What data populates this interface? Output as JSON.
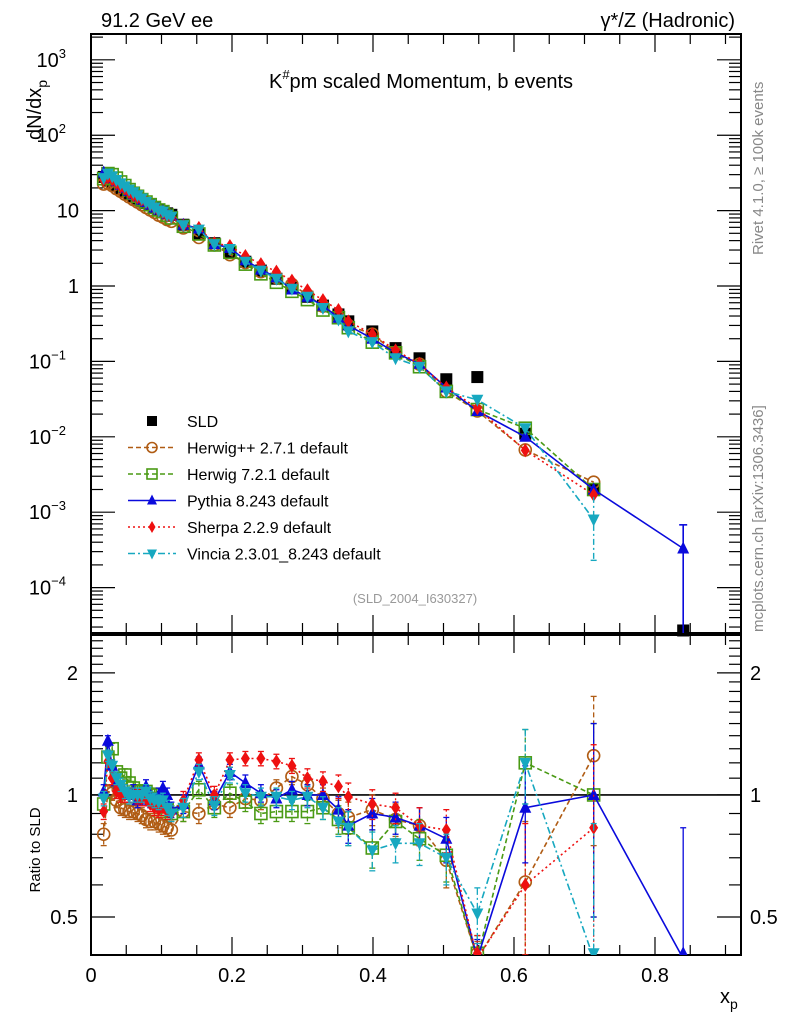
{
  "chart_data": [
    {
      "type": "scatter",
      "panel": "main",
      "title": "K#pm scaled Momentum, b events",
      "title_main": "K",
      "title_sup": "#",
      "title_rest": "pm scaled Momentum, b events",
      "header_left": "91.2 GeV ee",
      "header_right": "γ*/Z (Hadronic)",
      "side_label_top": "Rivet 4.1.0, ≥ 100k events",
      "side_label_bottom": "mcplots.cern.ch [arXiv:1306.3436]",
      "watermark": "(SLD_2004_I630327)",
      "ylabel": "dN/dx",
      "ylabel_sub": "p",
      "yscale": "log",
      "ylim": [
        2.5e-05,
        2200
      ],
      "xlim": [
        0,
        0.922
      ],
      "yticks": [
        {
          "value": 1000,
          "base": "10",
          "exp": "3"
        },
        {
          "value": 100,
          "base": "10",
          "exp": "2"
        },
        {
          "value": 10,
          "base": "10",
          "exp": ""
        },
        {
          "value": 1,
          "base": "1",
          "exp": ""
        },
        {
          "value": 0.1,
          "base": "10",
          "exp": "−1"
        },
        {
          "value": 0.01,
          "base": "10",
          "exp": "−2"
        },
        {
          "value": 0.001,
          "base": "10",
          "exp": "−3"
        },
        {
          "value": 0.0001,
          "base": "10",
          "exp": "−4"
        }
      ],
      "legend_position": "lower-left",
      "x": [
        0.018,
        0.024,
        0.03,
        0.036,
        0.042,
        0.048,
        0.054,
        0.06,
        0.066,
        0.072,
        0.078,
        0.084,
        0.09,
        0.096,
        0.102,
        0.108,
        0.114,
        0.131,
        0.153,
        0.175,
        0.197,
        0.219,
        0.241,
        0.263,
        0.285,
        0.307,
        0.329,
        0.351,
        0.365,
        0.399,
        0.432,
        0.466,
        0.504,
        0.548,
        0.616,
        0.713,
        0.84
      ],
      "series": [
        {
          "name": "SLD",
          "color": "#000000",
          "marker": "square",
          "line": "none",
          "values": [
            28,
            25,
            23,
            21,
            19.5,
            18,
            16.8,
            15.5,
            14.5,
            13.5,
            12.6,
            11.8,
            11,
            10.3,
            9.8,
            9.2,
            8.8,
            6.5,
            4.9,
            3.7,
            2.8,
            2.1,
            1.6,
            1.25,
            0.95,
            0.72,
            0.55,
            0.42,
            0.34,
            0.25,
            0.15,
            0.11,
            0.058,
            0.062,
            0.011,
            0.002,
            2.7e-05
          ]
        },
        {
          "name": "Herwig++ 2.7.1 default",
          "color": "#b05c14",
          "marker": "open-circle",
          "line": "dashed",
          "values": [
            22.5,
            23,
            21.5,
            19.5,
            18,
            16.5,
            15.2,
            14,
            13,
            12,
            11,
            10.2,
            9.5,
            8.7,
            8.2,
            7.6,
            7.2,
            5.9,
            4.4,
            3.5,
            2.6,
            2.05,
            1.55,
            1.3,
            1.05,
            0.76,
            0.54,
            0.38,
            0.3,
            0.23,
            0.13,
            0.092,
            0.04,
            0.022,
            0.0067,
            0.0025,
            null
          ]
        },
        {
          "name": "Herwig 7.2.1 default",
          "color": "#4a9a14",
          "marker": "open-square",
          "line": "dashed",
          "values": [
            26.5,
            31,
            30,
            27,
            24,
            21.5,
            19,
            17,
            15.5,
            14,
            13,
            12,
            11,
            10.2,
            9.7,
            8.7,
            8.0,
            6.2,
            4.9,
            3.5,
            2.8,
            1.95,
            1.45,
            1.12,
            0.85,
            0.66,
            0.48,
            0.38,
            0.28,
            0.18,
            0.13,
            0.085,
            0.04,
            0.023,
            0.013,
            0.002,
            null
          ]
        },
        {
          "name": "Pythia 8.243 default",
          "color": "#0a0adc",
          "marker": "triangle-up",
          "line": "solid",
          "values": [
            32,
            29.5,
            27,
            24.5,
            22,
            20,
            18.2,
            16.5,
            15.5,
            14,
            13,
            12,
            11,
            10.3,
            9.8,
            9,
            8.5,
            6.5,
            5.8,
            3.6,
            3.2,
            2.2,
            1.65,
            1.3,
            0.9,
            0.72,
            0.55,
            0.38,
            0.3,
            0.2,
            0.13,
            0.093,
            0.045,
            0.022,
            0.01,
            0.002,
            0.00033
          ]
        },
        {
          "name": "Sherpa 2.2.9 default",
          "color": "#ee1010",
          "marker": "diamond",
          "line": "dotted",
          "values": [
            25.5,
            28,
            26,
            23.5,
            21,
            19.5,
            17.5,
            16,
            15,
            14,
            13,
            12,
            11,
            10,
            9.5,
            8.5,
            8.2,
            6.3,
            5.9,
            3.7,
            3.4,
            2.5,
            1.95,
            1.55,
            1.18,
            0.88,
            0.65,
            0.48,
            0.34,
            0.23,
            0.14,
            0.093,
            0.045,
            0.024,
            0.0066,
            0.0017,
            null
          ]
        },
        {
          "name": "Vincia 2.3.01_8.243 default",
          "color": "#17a8c0",
          "marker": "triangle-down",
          "line": "dashdot",
          "values": [
            27,
            31,
            28.5,
            25.5,
            23,
            21,
            19,
            17.5,
            16,
            14.5,
            13,
            12,
            11,
            10,
            9.7,
            8.7,
            8.3,
            6.4,
            5.6,
            3.6,
            3.1,
            2.1,
            1.6,
            1.25,
            0.92,
            0.72,
            0.51,
            0.36,
            0.25,
            0.18,
            0.11,
            0.085,
            0.04,
            0.031,
            0.013,
            0.0008,
            null
          ]
        }
      ]
    },
    {
      "type": "scatter",
      "panel": "ratio",
      "ylabel": "Ratio to SLD",
      "xlabel": "x",
      "xlabel_sub": "p",
      "yscale": "log",
      "ylim": [
        0.403,
        2.48
      ],
      "xlim": [
        0,
        0.922
      ],
      "yticks": [
        {
          "value": 0.5,
          "label": "0.5"
        },
        {
          "value": 1,
          "label": "1"
        },
        {
          "value": 2,
          "label": "2"
        }
      ],
      "xticks": [
        {
          "value": 0,
          "label": "0"
        },
        {
          "value": 0.2,
          "label": "0.2"
        },
        {
          "value": 0.4,
          "label": "0.4"
        },
        {
          "value": 0.6,
          "label": "0.6"
        },
        {
          "value": 0.8,
          "label": "0.8"
        }
      ],
      "reference_line": 1,
      "x": [
        0.018,
        0.024,
        0.03,
        0.036,
        0.042,
        0.048,
        0.054,
        0.06,
        0.066,
        0.072,
        0.078,
        0.084,
        0.09,
        0.096,
        0.102,
        0.108,
        0.114,
        0.131,
        0.153,
        0.175,
        0.197,
        0.219,
        0.241,
        0.263,
        0.285,
        0.307,
        0.329,
        0.351,
        0.365,
        0.399,
        0.432,
        0.466,
        0.504,
        0.548,
        0.616,
        0.713,
        0.84
      ],
      "series": [
        {
          "name": "Herwig++ 2.7.1 default",
          "color": "#b05c14",
          "marker": "open-circle",
          "line": "dashed",
          "values": [
            0.8,
            1.02,
            1.01,
            0.97,
            0.93,
            0.92,
            0.91,
            0.91,
            0.9,
            0.89,
            0.87,
            0.86,
            0.86,
            0.85,
            0.84,
            0.83,
            0.82,
            0.91,
            0.9,
            0.95,
            0.93,
            0.98,
            0.97,
            1.04,
            1.11,
            1.06,
            0.98,
            0.9,
            0.88,
            0.92,
            0.87,
            0.84,
            0.69,
            0.355,
            0.61,
            1.25,
            null
          ],
          "err": [
            0.05,
            0.04,
            0.04,
            0.04,
            0.04,
            0.04,
            0.04,
            0.04,
            0.04,
            0.04,
            0.04,
            0.04,
            0.04,
            0.04,
            0.04,
            0.04,
            0.04,
            0.05,
            0.05,
            0.05,
            0.05,
            0.05,
            0.05,
            0.05,
            0.05,
            0.06,
            0.06,
            0.07,
            0.08,
            0.08,
            0.08,
            0.09,
            0.1,
            0.08,
            0.25,
            0.5,
            null
          ]
        },
        {
          "name": "Herwig 7.2.1 default",
          "color": "#4a9a14",
          "marker": "open-square",
          "line": "dashed",
          "values": [
            0.95,
            1.24,
            1.3,
            1.14,
            1.1,
            1.12,
            1.07,
            1.04,
            1.02,
            1.02,
            1.02,
            1.0,
            1.0,
            0.98,
            0.96,
            0.92,
            0.9,
            0.91,
            1.03,
            0.93,
            1.01,
            0.96,
            0.9,
            0.91,
            0.91,
            0.91,
            0.93,
            0.87,
            0.83,
            0.74,
            0.86,
            0.78,
            0.71,
            0.37,
            1.2,
            1.0,
            null
          ],
          "err": [
            0.04,
            0.04,
            0.04,
            0.04,
            0.04,
            0.04,
            0.04,
            0.04,
            0.04,
            0.04,
            0.04,
            0.04,
            0.04,
            0.04,
            0.04,
            0.04,
            0.04,
            0.05,
            0.05,
            0.05,
            0.05,
            0.05,
            0.05,
            0.05,
            0.05,
            0.06,
            0.06,
            0.07,
            0.08,
            0.08,
            0.08,
            0.09,
            0.1,
            0.08,
            0.25,
            0.5,
            null
          ]
        },
        {
          "name": "Pythia 8.243 default",
          "color": "#0a0adc",
          "marker": "triangle-up",
          "line": "solid",
          "values": [
            1.02,
            1.36,
            1.18,
            1.08,
            1.04,
            1.02,
            1.0,
            1.02,
            0.97,
            0.99,
            1.05,
            0.97,
            0.97,
            1.0,
            1.04,
            1.0,
            0.92,
            0.95,
            1.19,
            0.97,
            1.14,
            1.07,
            1.01,
            0.98,
            1.03,
            1.0,
            1.0,
            0.92,
            0.84,
            0.9,
            0.88,
            0.84,
            0.78,
            0.36,
            0.93,
            1.0,
            0.33
          ],
          "err": [
            0.04,
            0.04,
            0.04,
            0.04,
            0.04,
            0.04,
            0.04,
            0.04,
            0.04,
            0.04,
            0.04,
            0.04,
            0.04,
            0.04,
            0.04,
            0.04,
            0.04,
            0.05,
            0.05,
            0.05,
            0.05,
            0.05,
            0.05,
            0.05,
            0.05,
            0.06,
            0.06,
            0.07,
            0.08,
            0.08,
            0.08,
            0.09,
            0.1,
            0.08,
            0.25,
            0.5,
            0.5
          ]
        },
        {
          "name": "Sherpa 2.2.9 default",
          "color": "#ee1010",
          "marker": "diamond",
          "line": "dotted",
          "values": [
            0.91,
            1.21,
            1.1,
            1.02,
            1.0,
            1.0,
            1.0,
            1.0,
            0.99,
            0.98,
            0.98,
            0.95,
            0.93,
            0.92,
            0.93,
            0.91,
            0.9,
            0.97,
            1.22,
            1.0,
            1.22,
            1.23,
            1.23,
            1.21,
            1.18,
            1.1,
            1.08,
            1.05,
            0.99,
            0.95,
            0.93,
            0.84,
            0.82,
            0.37,
            0.6,
            0.83,
            null
          ],
          "err": [
            0.04,
            0.04,
            0.04,
            0.04,
            0.04,
            0.04,
            0.04,
            0.04,
            0.04,
            0.04,
            0.04,
            0.04,
            0.04,
            0.04,
            0.04,
            0.04,
            0.04,
            0.05,
            0.05,
            0.05,
            0.05,
            0.05,
            0.05,
            0.05,
            0.05,
            0.06,
            0.06,
            0.07,
            0.08,
            0.08,
            0.08,
            0.09,
            0.1,
            0.08,
            0.25,
            0.5,
            null
          ]
        },
        {
          "name": "Vincia 2.3.01_8.243 default",
          "color": "#17a8c0",
          "marker": "triangle-down",
          "line": "dashdot",
          "values": [
            0.98,
            1.25,
            1.18,
            1.1,
            1.06,
            1.02,
            0.99,
            1.0,
            1.0,
            1.0,
            1.02,
            0.98,
            0.97,
            0.96,
            0.97,
            0.93,
            0.9,
            0.93,
            1.14,
            0.94,
            1.12,
            1.01,
            0.99,
            0.99,
            0.97,
            0.99,
            0.93,
            0.86,
            0.83,
            0.73,
            0.76,
            0.76,
            0.7,
            0.51,
            1.2,
            0.35,
            null
          ],
          "err": [
            0.04,
            0.04,
            0.04,
            0.04,
            0.04,
            0.04,
            0.04,
            0.04,
            0.04,
            0.04,
            0.04,
            0.04,
            0.04,
            0.04,
            0.04,
            0.04,
            0.04,
            0.05,
            0.05,
            0.05,
            0.05,
            0.05,
            0.05,
            0.05,
            0.05,
            0.06,
            0.06,
            0.07,
            0.08,
            0.08,
            0.08,
            0.09,
            0.1,
            0.08,
            0.25,
            0.5,
            null
          ]
        }
      ]
    }
  ]
}
